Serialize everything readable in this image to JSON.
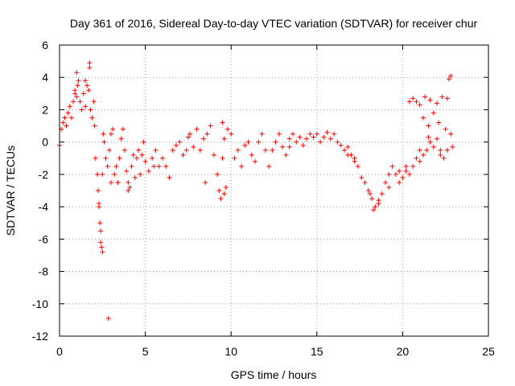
{
  "chart_data": {
    "type": "scatter",
    "title": "Day 361 of 2016, Sidereal Day-to-day VTEC variation (SDTVAR) for receiver chur",
    "xlabel": "GPS time / hours",
    "ylabel": "SDTVAR / TECUs",
    "xlim": [
      0,
      25
    ],
    "ylim": [
      -12,
      6
    ],
    "xticks": [
      0,
      5,
      10,
      15,
      20,
      25
    ],
    "yticks": [
      -12,
      -10,
      -8,
      -6,
      -4,
      -2,
      0,
      2,
      4,
      6
    ],
    "grid": true,
    "marker": "+",
    "color": "#ff0000",
    "series": [
      {
        "name": "SDTVAR",
        "x": [
          0.0,
          0.1,
          0.2,
          0.3,
          0.4,
          0.5,
          0.6,
          0.7,
          0.8,
          0.9,
          1.0,
          1.05,
          1.1,
          1.2,
          1.3,
          1.4,
          1.5,
          1.6,
          1.7,
          1.75,
          1.8,
          1.9,
          2.0,
          2.05,
          2.1,
          2.2,
          2.25,
          2.3,
          2.35,
          2.4,
          2.45,
          2.5,
          2.55,
          2.6,
          2.7,
          2.8,
          2.9,
          3.0,
          3.1,
          3.2,
          3.3,
          3.4,
          3.5,
          3.6,
          3.7,
          3.8,
          3.9,
          4.0,
          4.1,
          4.2,
          4.3,
          4.4,
          4.5,
          4.6,
          4.7,
          4.8,
          4.9,
          5.0,
          5.2,
          5.4,
          5.6,
          5.8,
          6.0,
          6.2,
          6.4,
          6.6,
          6.8,
          7.0,
          7.2,
          7.4,
          7.6,
          7.8,
          8.0,
          8.2,
          8.4,
          8.6,
          8.8,
          9.0,
          9.2,
          9.3,
          9.4,
          9.5,
          9.6,
          9.8,
          10.0,
          10.2,
          10.4,
          10.6,
          10.8,
          11.0,
          11.2,
          11.4,
          11.6,
          11.8,
          12.0,
          12.2,
          12.4,
          12.6,
          12.8,
          13.0,
          13.2,
          13.4,
          13.6,
          13.8,
          14.0,
          14.2,
          14.4,
          14.6,
          14.8,
          15.0,
          15.2,
          15.4,
          15.6,
          15.8,
          16.0,
          16.2,
          16.4,
          16.6,
          16.8,
          17.0,
          17.2,
          17.4,
          17.6,
          17.8,
          18.0,
          18.2,
          18.4,
          18.6,
          18.8,
          19.0,
          19.2,
          19.4,
          19.6,
          19.8,
          20.0,
          20.2,
          20.4,
          20.6,
          20.8,
          21.0,
          21.2,
          21.4,
          21.6,
          21.8,
          22.0,
          22.2,
          22.4,
          22.6,
          22.8,
          22.9,
          2.85,
          2.3,
          2.4,
          2.5,
          1.0,
          1.5,
          1.75,
          0.9,
          20.4,
          20.6,
          20.8,
          21.0,
          21.3,
          21.6,
          22.0,
          22.3,
          22.6,
          22.8,
          21.2,
          21.5,
          21.8,
          22.1,
          22.5,
          8.5,
          9.6,
          9.7,
          13.4,
          9.5,
          7.5,
          4.0,
          3.0,
          5.5,
          16.8,
          17.2,
          18.1,
          18.3,
          18.6,
          19.2,
          19.8,
          20.2,
          21.0,
          21.5,
          22.2,
          22.7
        ],
        "y": [
          -0.2,
          0.8,
          1.2,
          1.5,
          1.0,
          1.8,
          2.2,
          1.5,
          2.5,
          3.0,
          2.8,
          3.5,
          3.8,
          2.5,
          2.0,
          3.0,
          2.2,
          3.5,
          3.2,
          4.9,
          2.0,
          1.5,
          2.5,
          1.0,
          -1.0,
          -2.0,
          -3.0,
          -4.0,
          -5.0,
          -6.2,
          -6.5,
          -2.0,
          0.5,
          0.0,
          -1.0,
          -1.5,
          -0.5,
          0.5,
          0.8,
          -2.0,
          -1.5,
          -2.5,
          -1.0,
          0.2,
          0.8,
          -0.5,
          -1.8,
          -2.5,
          -2.8,
          -1.5,
          -0.8,
          -2.2,
          -1.0,
          -0.5,
          -2.0,
          -0.8,
          0.0,
          -1.2,
          -1.8,
          -1.0,
          -0.5,
          -1.5,
          -1.0,
          -1.5,
          -2.2,
          -0.5,
          -0.2,
          0.0,
          -0.8,
          -0.5,
          0.5,
          -0.3,
          0.8,
          -0.5,
          0.2,
          0.5,
          1.0,
          -0.8,
          -2.0,
          -3.0,
          -3.5,
          -1.0,
          0.2,
          0.8,
          0.5,
          -1.0,
          -0.5,
          -1.5,
          -0.2,
          0.0,
          -0.8,
          -1.2,
          0.0,
          0.5,
          -0.5,
          -1.5,
          -0.5,
          0.0,
          0.5,
          -0.3,
          -0.8,
          0.2,
          0.5,
          0.0,
          0.3,
          -0.2,
          0.2,
          0.5,
          0.3,
          0.5,
          0.0,
          0.3,
          0.6,
          0.2,
          0.5,
          0.0,
          -0.2,
          -0.5,
          -0.3,
          -0.8,
          -1.2,
          -1.5,
          -2.2,
          -2.5,
          -3.0,
          -3.5,
          -4.0,
          -3.8,
          -3.2,
          -2.5,
          -2.0,
          -1.5,
          -2.0,
          -2.5,
          -2.2,
          -1.8,
          -2.0,
          -1.5,
          -1.0,
          -1.2,
          -0.8,
          -0.5,
          0.0,
          -0.3,
          0.2,
          -0.5,
          -1.0,
          -0.5,
          0.5,
          -0.3,
          -10.9,
          -3.8,
          -5.5,
          -6.8,
          4.3,
          3.8,
          4.6,
          3.2,
          2.5,
          2.7,
          2.5,
          2.3,
          2.8,
          2.6,
          2.4,
          2.8,
          2.7,
          4.1,
          1.5,
          1.0,
          1.8,
          1.2,
          0.8,
          -2.5,
          -3.2,
          -2.8,
          -0.3,
          1.2,
          0.3,
          -3.0,
          -2.5,
          -1.5,
          -0.8,
          -1.0,
          -3.2,
          -4.2,
          -3.6,
          -2.8,
          -1.8,
          -1.5,
          -0.5,
          0.3,
          -0.8,
          3.9
        ]
      }
    ]
  }
}
